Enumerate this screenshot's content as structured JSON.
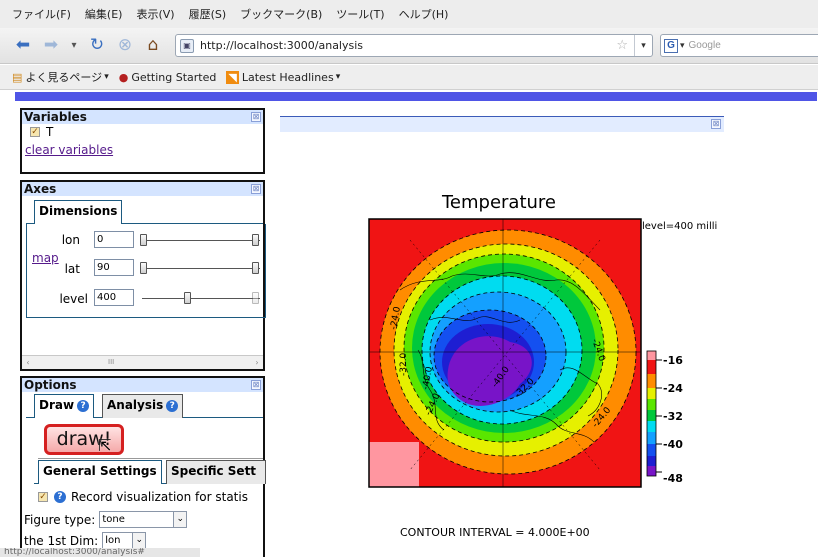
{
  "menubar": {
    "items": [
      "ファイル(F)",
      "編集(E)",
      "表示(V)",
      "履歴(S)",
      "ブックマーク(B)",
      "ツール(T)",
      "ヘルプ(H)"
    ]
  },
  "navbar": {
    "url": "http://localhost:3000/analysis",
    "search_placeholder": "Google"
  },
  "bookmarks": {
    "items": [
      "よく見るページ",
      "Getting Started",
      "Latest Headlines"
    ]
  },
  "variables_panel": {
    "title": "Variables",
    "variable": "T",
    "clear_link": "clear variables"
  },
  "axes_panel": {
    "title": "Axes",
    "tab": "Dimensions",
    "map_link": "map",
    "dims": [
      {
        "name": "lon",
        "value": "0"
      },
      {
        "name": "lat",
        "value": "90"
      },
      {
        "name": "level",
        "value": "400"
      }
    ],
    "scroll_grip": "III"
  },
  "options_panel": {
    "title": "Options",
    "tabs": [
      "Draw",
      "Analysis"
    ],
    "draw_button": "draw!",
    "settings_tabs": [
      "General Settings",
      "Specific Sett"
    ],
    "record_label": "Record visualization for statis",
    "figure_type_label": "Figure type:",
    "figure_type_value": "tone",
    "first_dim_label": "the 1st Dim:",
    "first_dim_value": "lon"
  },
  "plot": {
    "title": "Temperature",
    "level_label": "level=400 milli",
    "contour_interval": "CONTOUR INTERVAL = 4.000E+00",
    "contour_labels": [
      "-24.0",
      "-24.0",
      "-32.0",
      "-40.0",
      "-24.0",
      "-40.0",
      "-32.0",
      "-24.0"
    ],
    "colorbar_ticks": [
      "-16",
      "-24",
      "-32",
      "-40",
      "-48"
    ],
    "colors": {
      "red": "#f01414",
      "orange": "#ff8c00",
      "yellow": "#e6f000",
      "lime": "#5ae600",
      "green": "#00c83c",
      "cyan": "#00dcf0",
      "lightblue": "#14a0ff",
      "blue": "#1450f0",
      "darkblue": "#1e1ed2",
      "purple": "#7814c8",
      "pink": "#ff96a0"
    }
  },
  "status": {
    "text": "http://localhost:3000/analysis#"
  }
}
